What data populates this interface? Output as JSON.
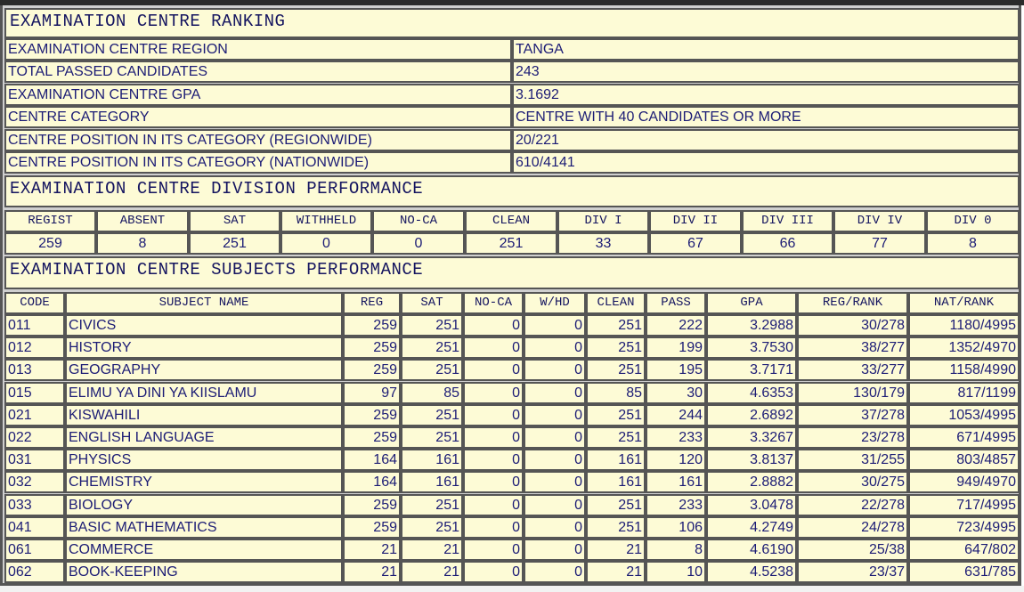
{
  "ranking": {
    "title": "EXAMINATION CENTRE RANKING",
    "rows": [
      {
        "label": "EXAMINATION CENTRE REGION",
        "value": "TANGA"
      },
      {
        "label": "TOTAL PASSED CANDIDATES",
        "value": "243"
      },
      {
        "label": "EXAMINATION CENTRE GPA",
        "value": "3.1692"
      },
      {
        "label": "CENTRE CATEGORY",
        "value": "CENTRE WITH 40 CANDIDATES OR MORE"
      },
      {
        "label": "CENTRE POSITION IN ITS CATEGORY (REGIONWIDE)",
        "value": "20/221"
      },
      {
        "label": "CENTRE POSITION IN ITS CATEGORY (NATIONWIDE)",
        "value": "610/4141"
      }
    ]
  },
  "division": {
    "title": "EXAMINATION CENTRE DIVISION PERFORMANCE",
    "headers": [
      "REGIST",
      "ABSENT",
      "SAT",
      "WITHHELD",
      "NO-CA",
      "CLEAN",
      "DIV I",
      "DIV II",
      "DIV III",
      "DIV IV",
      "DIV 0"
    ],
    "values": [
      "259",
      "8",
      "251",
      "0",
      "0",
      "251",
      "33",
      "67",
      "66",
      "77",
      "8"
    ]
  },
  "subjects": {
    "title": "EXAMINATION CENTRE SUBJECTS PERFORMANCE",
    "headers": [
      "CODE",
      "SUBJECT NAME",
      "REG",
      "SAT",
      "NO-CA",
      "W/HD",
      "CLEAN",
      "PASS",
      "GPA",
      "REG/RANK",
      "NAT/RANK"
    ],
    "rows": [
      [
        "011",
        "CIVICS",
        "259",
        "251",
        "0",
        "0",
        "251",
        "222",
        "3.2988",
        "30/278",
        "1180/4995"
      ],
      [
        "012",
        "HISTORY",
        "259",
        "251",
        "0",
        "0",
        "251",
        "199",
        "3.7530",
        "38/277",
        "1352/4970"
      ],
      [
        "013",
        "GEOGRAPHY",
        "259",
        "251",
        "0",
        "0",
        "251",
        "195",
        "3.7171",
        "33/277",
        "1158/4990"
      ],
      [
        "015",
        "ELIMU YA DINI YA KIISLAMU",
        "97",
        "85",
        "0",
        "0",
        "85",
        "30",
        "4.6353",
        "130/179",
        "817/1199"
      ],
      [
        "021",
        "KISWAHILI",
        "259",
        "251",
        "0",
        "0",
        "251",
        "244",
        "2.6892",
        "37/278",
        "1053/4995"
      ],
      [
        "022",
        "ENGLISH LANGUAGE",
        "259",
        "251",
        "0",
        "0",
        "251",
        "233",
        "3.3267",
        "23/278",
        "671/4995"
      ],
      [
        "031",
        "PHYSICS",
        "164",
        "161",
        "0",
        "0",
        "161",
        "120",
        "3.8137",
        "31/255",
        "803/4857"
      ],
      [
        "032",
        "CHEMISTRY",
        "164",
        "161",
        "0",
        "0",
        "161",
        "161",
        "2.8882",
        "30/275",
        "949/4970"
      ],
      [
        "033",
        "BIOLOGY",
        "259",
        "251",
        "0",
        "0",
        "251",
        "233",
        "3.0478",
        "22/278",
        "717/4995"
      ],
      [
        "041",
        "BASIC MATHEMATICS",
        "259",
        "251",
        "0",
        "0",
        "251",
        "106",
        "4.2749",
        "24/278",
        "723/4995"
      ],
      [
        "061",
        "COMMERCE",
        "21",
        "21",
        "0",
        "0",
        "21",
        "8",
        "4.6190",
        "25/38",
        "647/802"
      ],
      [
        "062",
        "BOOK-KEEPING",
        "21",
        "21",
        "0",
        "0",
        "21",
        "10",
        "4.5238",
        "23/37",
        "631/785"
      ]
    ]
  }
}
